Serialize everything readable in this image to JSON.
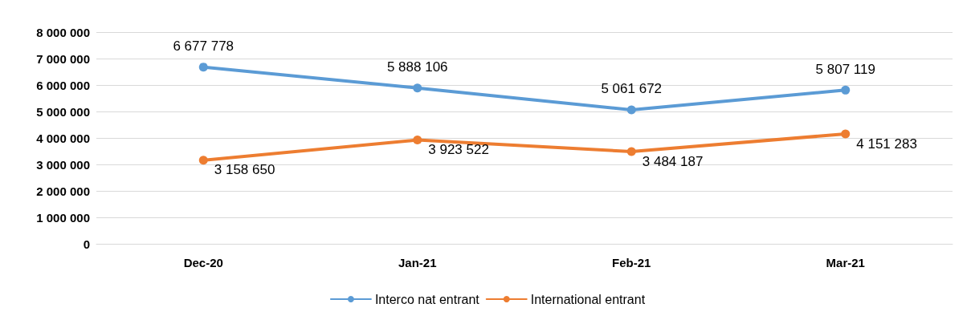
{
  "chart_data": {
    "type": "line",
    "categories": [
      "Dec-20",
      "Jan-21",
      "Feb-21",
      "Mar-21"
    ],
    "series": [
      {
        "name": "Interco nat entrant",
        "color": "#5b9bd5",
        "values": [
          6677778,
          5888106,
          5061672,
          5807119
        ],
        "value_labels": [
          "6 677 778",
          "5 888 106",
          "5 061 672",
          "5 807 119"
        ]
      },
      {
        "name": "International entrant",
        "color": "#ed7d31",
        "values": [
          3158650,
          3923522,
          3484187,
          4151283
        ],
        "value_labels": [
          "3 158 650",
          "3 923 522",
          "3 484 187",
          "4 151 283"
        ]
      }
    ],
    "ylim": [
      0,
      8000000
    ],
    "yticks": [
      {
        "value": 0,
        "label": "0"
      },
      {
        "value": 1000000,
        "label": "1 000 000"
      },
      {
        "value": 2000000,
        "label": "2 000 000"
      },
      {
        "value": 3000000,
        "label": "3 000 000"
      },
      {
        "value": 4000000,
        "label": "4 000 000"
      },
      {
        "value": 5000000,
        "label": "5 000 000"
      },
      {
        "value": 6000000,
        "label": "6 000 000"
      },
      {
        "value": 7000000,
        "label": "7 000 000"
      },
      {
        "value": 8000000,
        "label": "8 000 000"
      }
    ],
    "grid": "y",
    "legend": "bottom",
    "marker": "circle",
    "line_style": "solid"
  }
}
